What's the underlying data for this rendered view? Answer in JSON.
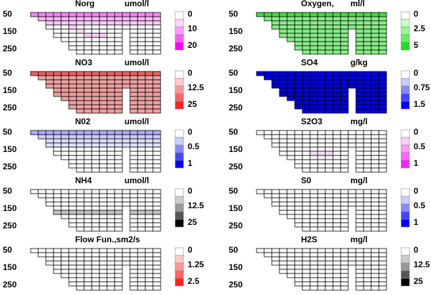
{
  "window": {
    "background": "#ffffff"
  },
  "depth_ticks": [
    "50",
    "150",
    "250"
  ],
  "panels": [
    {
      "id": "norg",
      "title": "Norg",
      "unit": "umol/l",
      "scale_labels": [
        "0",
        "10",
        "20"
      ],
      "scale_colors": [
        "#ffffff",
        "#ffd6ff",
        "#ff9cff",
        "#ff5cff",
        "#ff00ff"
      ],
      "tints": [
        {
          "from": "#ffffff",
          "to": "#ff5cff",
          "level": 0.75,
          "row": 0
        },
        {
          "level": 0.45,
          "row": 1
        },
        {
          "level": 0.3,
          "row": 2
        },
        {
          "level": 0.25,
          "row": 3,
          "column": 5
        },
        {
          "level": 0.2,
          "row": 4,
          "column": 6
        },
        {
          "level": 0.3,
          "row": 5,
          "columns": [
            7,
            8,
            9
          ]
        }
      ]
    },
    {
      "id": "oxygen",
      "title": "Oxygen,",
      "unit": "ml/l",
      "scale_labels": [
        "0",
        "2.5",
        "5"
      ],
      "scale_colors": [
        "#ffffff",
        "#ccffcc",
        "#99f599",
        "#66ee66",
        "#22dd22"
      ],
      "fill_all": "#88ee88",
      "surface_fill": "#44dd44"
    },
    {
      "id": "no3",
      "title": "NO3",
      "unit": "umol/l",
      "scale_labels": [
        "0",
        "12.5",
        "25"
      ],
      "scale_colors": [
        "#ffffff",
        "#ffcccc",
        "#ff9999",
        "#ff6666",
        "#ff2222"
      ],
      "fill_all": "#f0a0a0",
      "surface_fill": "#e86060"
    },
    {
      "id": "so4",
      "title": "SO4",
      "unit": "g/kg",
      "scale_labels": [
        "0",
        "0.75",
        "1.5"
      ],
      "scale_colors": [
        "#ffffff",
        "#ccccff",
        "#8888ff",
        "#4444ff",
        "#0000ff"
      ],
      "fill_all": "#0000dd"
    },
    {
      "id": "no2",
      "title": "N02",
      "unit": "umol/l",
      "scale_labels": [
        "0",
        "0.5",
        "1"
      ],
      "scale_colors": [
        "#ffffff",
        "#ccccff",
        "#8888ff",
        "#4444ff",
        "#0000ff"
      ],
      "tints": [
        {
          "from": "#ffffff",
          "to": "#8888ff",
          "level": 0.7,
          "row": 0
        },
        {
          "level": 0.4,
          "row": 1
        },
        {
          "level": 0.3,
          "row": 2
        },
        {
          "level": 0.25,
          "row": 3
        }
      ]
    },
    {
      "id": "s2o3",
      "title": "S2O3",
      "unit": "mg/l",
      "scale_labels": [
        "0",
        "0.5",
        "1"
      ],
      "scale_colors": [
        "#ffffff",
        "#ffccff",
        "#ff99ff",
        "#ff66ff",
        "#ff22ff"
      ],
      "tints": [
        {
          "from": "#ffffff",
          "to": "#ff99ff",
          "level": 0.35,
          "row": 5,
          "columns": [
            7,
            8,
            9
          ]
        }
      ]
    },
    {
      "id": "nh4",
      "title": "NH4",
      "unit": "umol/l",
      "scale_labels": [
        "0",
        "12.5",
        "25"
      ],
      "scale_colors": [
        "#ffffff",
        "#cccccc",
        "#999999",
        "#555555",
        "#000000"
      ],
      "tints": [
        {
          "from": "#ffffff",
          "to": "#888888",
          "level": 0.5,
          "row": 5
        }
      ]
    },
    {
      "id": "s0",
      "title": "S0",
      "unit": "mg/l",
      "scale_labels": [
        "0",
        "0.5",
        "1"
      ],
      "scale_colors": [
        "#ffffff",
        "#ccccff",
        "#8888ff",
        "#4444ff",
        "#0000ff"
      ]
    },
    {
      "id": "flow",
      "title": "Flow Fun.,sm2/s",
      "unit": "",
      "scale_labels": [
        "0",
        "1.25",
        "2.5"
      ],
      "scale_colors": [
        "#ffffff",
        "#ffcccc",
        "#ff9999",
        "#ff6666",
        "#ff2222"
      ]
    },
    {
      "id": "h2s",
      "title": "H2S",
      "unit": "mg/l",
      "scale_labels": [
        "0",
        "12.5",
        "25"
      ],
      "scale_colors": [
        "#ffffff",
        "#cccccc",
        "#999999",
        "#555555",
        "#000000"
      ]
    }
  ]
}
